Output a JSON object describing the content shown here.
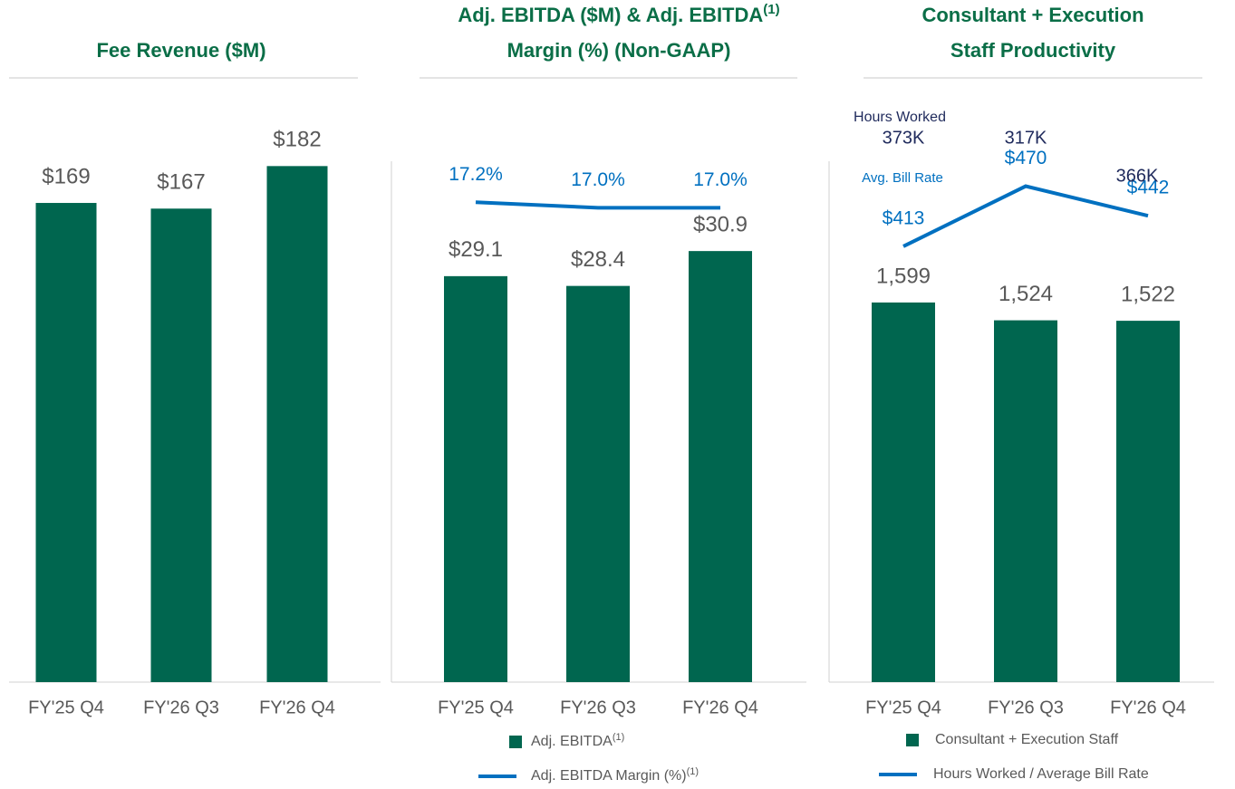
{
  "chart_data": [
    {
      "type": "bar",
      "title": [
        "Fee Revenue ($M)"
      ],
      "categories": [
        "FY'25 Q4",
        "FY'26 Q3",
        "FY'26 Q4"
      ],
      "series": [
        {
          "color": "#00664f",
          "values": [
            169,
            167,
            182
          ],
          "value_labels": [
            "$169",
            "$167",
            "$182"
          ]
        }
      ],
      "ylim": [
        0,
        200
      ]
    },
    {
      "type": "combo",
      "title": [
        "Adj. EBITDA ($M) & Adj. EBITDA",
        "Margin (%) (Non-GAAP)"
      ],
      "title_note": "(1)",
      "categories": [
        "FY'25 Q4",
        "FY'26 Q3",
        "FY'26 Q4"
      ],
      "series": [
        {
          "name": "Adj. EBITDA",
          "note": "(1)",
          "type": "bar",
          "color": "#00664f",
          "values": [
            29.1,
            28.4,
            30.9
          ],
          "value_labels": [
            "$29.1",
            "$28.4",
            "$30.9"
          ]
        },
        {
          "name": "Adj. EBITDA Margin (%)",
          "note": "(1)",
          "type": "line",
          "axis": "y2",
          "color": "#0070c0",
          "values": [
            17.2,
            17.0,
            17.0
          ],
          "value_labels": [
            "17.2%",
            "17.0%",
            "17.0%"
          ]
        }
      ],
      "ylim": [
        0,
        40
      ],
      "y2lim": [
        0,
        20
      ]
    },
    {
      "type": "combo",
      "title": [
        "Consultant + Execution",
        "Staff Productivity"
      ],
      "categories": [
        "FY'25 Q4",
        "FY'26 Q3",
        "FY'26 Q4"
      ],
      "series": [
        {
          "name": "Consultant + Execution Staff",
          "type": "bar",
          "color": "#00664f",
          "values": [
            1599,
            1524,
            1522
          ],
          "value_labels": [
            "1,599",
            "1,524",
            "1,522"
          ]
        },
        {
          "name": "Hours Worked / Average Bill Rate",
          "type": "line",
          "axis": "y2",
          "color": "#0070c0",
          "values": [
            413,
            470,
            442
          ],
          "value_labels": [
            "$413",
            "$470",
            "$442"
          ]
        }
      ],
      "hours_worked": {
        "label": "Hours Worked",
        "values": [
          373000,
          317000,
          366000
        ],
        "value_labels": [
          "373K",
          "317K",
          "366K"
        ]
      },
      "bill_rate_label": "Avg. Bill Rate",
      "ylim": [
        0,
        2400
      ],
      "y2lim": [
        0,
        540
      ]
    }
  ]
}
